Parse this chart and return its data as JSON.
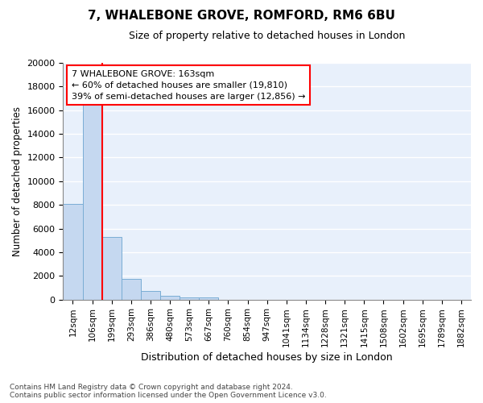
{
  "title": "7, WHALEBONE GROVE, ROMFORD, RM6 6BU",
  "subtitle": "Size of property relative to detached houses in London",
  "xlabel": "Distribution of detached houses by size in London",
  "ylabel": "Number of detached properties",
  "bar_color": "#c5d8f0",
  "bar_edge_color": "#7aadd4",
  "background_color": "#e8f0fb",
  "categories": [
    "12sqm",
    "106sqm",
    "199sqm",
    "293sqm",
    "386sqm",
    "480sqm",
    "573sqm",
    "667sqm",
    "760sqm",
    "854sqm",
    "947sqm",
    "1041sqm",
    "1134sqm",
    "1228sqm",
    "1321sqm",
    "1415sqm",
    "1508sqm",
    "1602sqm",
    "1695sqm",
    "1789sqm",
    "1882sqm"
  ],
  "values": [
    8100,
    16500,
    5300,
    1750,
    750,
    320,
    200,
    160,
    0,
    0,
    0,
    0,
    0,
    0,
    0,
    0,
    0,
    0,
    0,
    0,
    0
  ],
  "red_line_index": 1,
  "annotation_text": "7 WHALEBONE GROVE: 163sqm\n← 60% of detached houses are smaller (19,810)\n39% of semi-detached houses are larger (12,856) →",
  "annotation_box_color": "white",
  "annotation_box_edge_color": "red",
  "ylim": [
    0,
    20000
  ],
  "yticks": [
    0,
    2000,
    4000,
    6000,
    8000,
    10000,
    12000,
    14000,
    16000,
    18000,
    20000
  ],
  "footer_line1": "Contains HM Land Registry data © Crown copyright and database right 2024.",
  "footer_line2": "Contains public sector information licensed under the Open Government Licence v3.0."
}
